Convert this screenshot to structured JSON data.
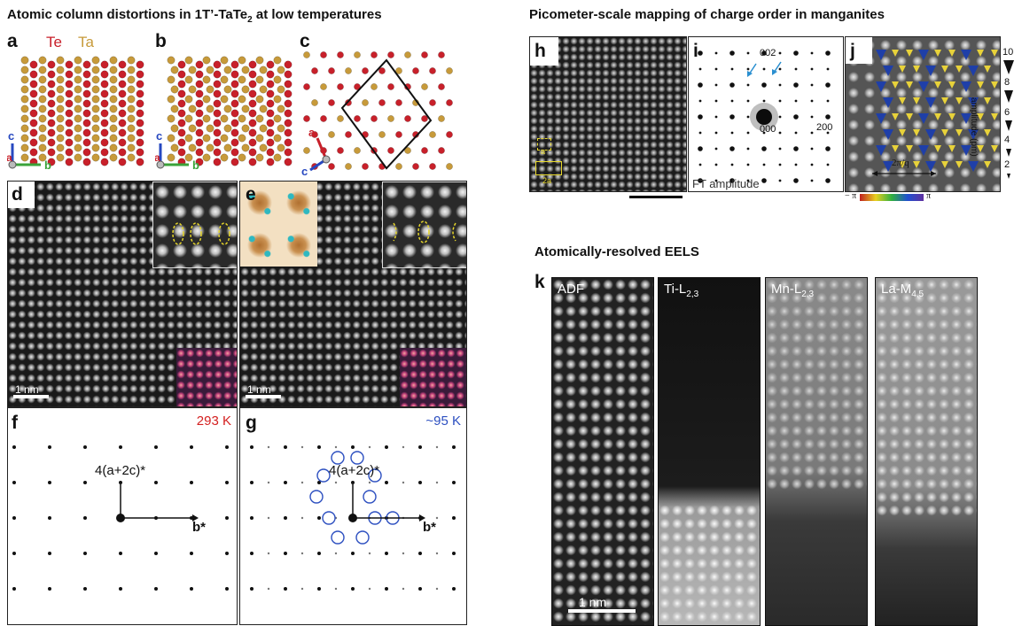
{
  "left_title_main": "Atomic column distortions in 1T’-TaTe",
  "left_title_sub": "2",
  "left_title_tail": " at low temperatures",
  "right_title": "Picometer-scale mapping of charge order in manganites",
  "eels_title": "Atomically-resolved EELS",
  "panel_labels": [
    "a",
    "b",
    "c",
    "d",
    "e",
    "f",
    "g",
    "h",
    "i",
    "j",
    "k"
  ],
  "legend": {
    "te": "Te",
    "ta": "Ta"
  },
  "axes": {
    "c": "c",
    "a": "a",
    "b": "b"
  },
  "scale_1nm": "1 nm",
  "temps": {
    "f": "293 K",
    "g": "~95 K"
  },
  "fft_labels": {
    "vec": "4(a+2c)*",
    "bstar": "b*"
  },
  "i_labels": {
    "s002": "002",
    "s000": "000",
    "s200": "200",
    "ft": "FT amplitude"
  },
  "h_labels": {
    "a": "a",
    "two_a": "2a"
  },
  "j_labels": {
    "wavelength": "2π/q",
    "ticks": [
      "10",
      "8",
      "6",
      "4",
      "2"
    ],
    "axis": "amplitude (pm)",
    "neg": "− π",
    "pos": "π"
  },
  "k_panels": [
    {
      "label": "ADF"
    },
    {
      "label": "Ti-L",
      "sub": "2,3"
    },
    {
      "label": "Mn-L",
      "sub": "2,3"
    },
    {
      "label": "La-M",
      "sub": "4,5"
    }
  ],
  "k_scale": "1 nm",
  "colors": {
    "te": "#c8202a",
    "ta": "#c79a3a",
    "temp_hot": "#d42020",
    "temp_cold": "#2c4fc0",
    "yellow": "#e8d23a",
    "blue_marker": "#1f3fa8"
  }
}
